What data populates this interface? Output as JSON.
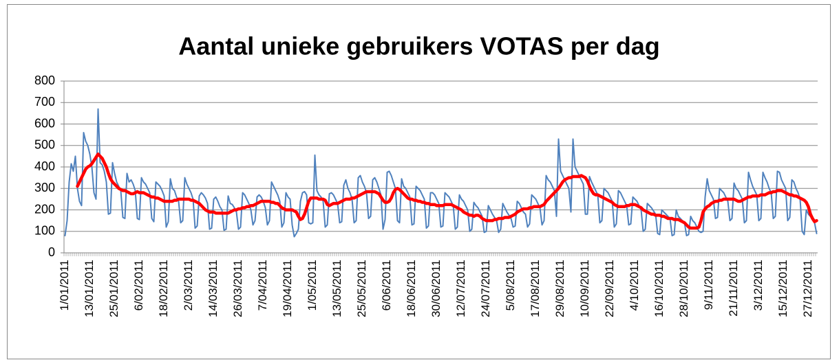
{
  "chart_data": {
    "type": "line",
    "title": "Aantal unieke gebruikers VOTAS per dag",
    "categories": [
      "1/01/2011",
      null,
      null,
      null,
      null,
      null,
      null,
      null,
      null,
      null,
      null,
      null,
      "13/01/2011",
      null,
      null,
      null,
      null,
      null,
      null,
      null,
      null,
      null,
      null,
      null,
      "25/01/2011",
      null,
      null,
      null,
      null,
      null,
      null,
      null,
      null,
      null,
      null,
      null,
      "6/02/2011",
      null,
      null,
      null,
      null,
      null,
      null,
      null,
      null,
      null,
      null,
      null,
      "18/02/2011",
      null,
      null,
      null,
      null,
      null,
      null,
      null,
      null,
      null,
      null,
      null,
      "2/03/2011",
      null,
      null,
      null,
      null,
      null,
      null,
      null,
      null,
      null,
      null,
      null,
      "14/03/2011",
      null,
      null,
      null,
      null,
      null,
      null,
      null,
      null,
      null,
      null,
      null,
      "26/03/2011",
      null,
      null,
      null,
      null,
      null,
      null,
      null,
      null,
      null,
      null,
      null,
      "7/04/2011",
      null,
      null,
      null,
      null,
      null,
      null,
      null,
      null,
      null,
      null,
      null,
      "19/04/2011",
      null,
      null,
      null,
      null,
      null,
      null,
      null,
      null,
      null,
      null,
      null,
      "1/05/2011",
      null,
      null,
      null,
      null,
      null,
      null,
      null,
      null,
      null,
      null,
      null,
      "13/05/2011",
      null,
      null,
      null,
      null,
      null,
      null,
      null,
      null,
      null,
      null,
      null,
      "25/05/2011",
      null,
      null,
      null,
      null,
      null,
      null,
      null,
      null,
      null,
      null,
      null,
      "6/06/2011",
      null,
      null,
      null,
      null,
      null,
      null,
      null,
      null,
      null,
      null,
      null,
      "18/06/2011",
      null,
      null,
      null,
      null,
      null,
      null,
      null,
      null,
      null,
      null,
      null,
      "30/06/2011",
      null,
      null,
      null,
      null,
      null,
      null,
      null,
      null,
      null,
      null,
      null,
      "12/07/2011",
      null,
      null,
      null,
      null,
      null,
      null,
      null,
      null,
      null,
      null,
      null,
      "24/07/2011",
      null,
      null,
      null,
      null,
      null,
      null,
      null,
      null,
      null,
      null,
      null,
      "5/08/2011",
      null,
      null,
      null,
      null,
      null,
      null,
      null,
      null,
      null,
      null,
      null,
      "17/08/2011",
      null,
      null,
      null,
      null,
      null,
      null,
      null,
      null,
      null,
      null,
      null,
      "29/08/2011",
      null,
      null,
      null,
      null,
      null,
      null,
      null,
      null,
      null,
      null,
      null,
      "10/09/2011",
      null,
      null,
      null,
      null,
      null,
      null,
      null,
      null,
      null,
      null,
      null,
      "22/09/2011",
      null,
      null,
      null,
      null,
      null,
      null,
      null,
      null,
      null,
      null,
      null,
      "4/10/2011",
      null,
      null,
      null,
      null,
      null,
      null,
      null,
      null,
      null,
      null,
      null,
      "16/10/2011",
      null,
      null,
      null,
      null,
      null,
      null,
      null,
      null,
      null,
      null,
      null,
      "28/10/2011",
      null,
      null,
      null,
      null,
      null,
      null,
      null,
      null,
      null,
      null,
      null,
      "9/11/2011",
      null,
      null,
      null,
      null,
      null,
      null,
      null,
      null,
      null,
      null,
      null,
      "21/11/2011",
      null,
      null,
      null,
      null,
      null,
      null,
      null,
      null,
      null,
      null,
      null,
      "3/12/2011",
      null,
      null,
      null,
      null,
      null,
      null,
      null,
      null,
      null,
      null,
      null,
      "15/12/2011",
      null,
      null,
      null,
      null,
      null,
      null,
      null,
      null,
      null,
      null,
      null,
      "27/12/2011",
      null,
      null,
      null,
      null
    ],
    "series": [
      {
        "color": "#4f81bd",
        "width": 2,
        "values": [
          80,
          150,
          330,
          415,
          380,
          450,
          300,
          240,
          220,
          560,
          520,
          500,
          460,
          400,
          280,
          250,
          670,
          420,
          410,
          380,
          330,
          180,
          185,
          420,
          370,
          330,
          310,
          290,
          165,
          160,
          370,
          330,
          340,
          320,
          290,
          160,
          155,
          350,
          330,
          320,
          300,
          280,
          160,
          145,
          330,
          320,
          310,
          290,
          265,
          120,
          145,
          345,
          300,
          290,
          260,
          240,
          140,
          150,
          350,
          320,
          300,
          280,
          250,
          115,
          125,
          265,
          280,
          270,
          255,
          230,
          110,
          115,
          250,
          260,
          240,
          215,
          200,
          105,
          110,
          265,
          230,
          225,
          210,
          190,
          110,
          120,
          280,
          270,
          250,
          230,
          200,
          130,
          150,
          260,
          270,
          260,
          240,
          210,
          130,
          150,
          330,
          310,
          290,
          270,
          240,
          120,
          140,
          280,
          260,
          250,
          130,
          75,
          90,
          110,
          240,
          280,
          285,
          270,
          140,
          135,
          140,
          455,
          290,
          270,
          260,
          240,
          120,
          130,
          275,
          280,
          270,
          250,
          230,
          140,
          145,
          315,
          340,
          300,
          280,
          250,
          140,
          150,
          350,
          360,
          330,
          310,
          280,
          160,
          170,
          340,
          350,
          330,
          300,
          270,
          110,
          155,
          375,
          380,
          360,
          330,
          300,
          150,
          140,
          345,
          310,
          300,
          280,
          260,
          130,
          135,
          310,
          300,
          290,
          270,
          250,
          115,
          125,
          280,
          280,
          270,
          250,
          230,
          120,
          125,
          280,
          270,
          260,
          240,
          220,
          110,
          120,
          270,
          250,
          240,
          220,
          200,
          100,
          110,
          235,
          220,
          210,
          190,
          170,
          95,
          100,
          220,
          200,
          180,
          165,
          150,
          95,
          110,
          230,
          210,
          190,
          175,
          160,
          120,
          125,
          240,
          230,
          210,
          190,
          180,
          120,
          135,
          270,
          260,
          250,
          230,
          210,
          130,
          150,
          360,
          340,
          330,
          310,
          290,
          170,
          530,
          380,
          360,
          340,
          320,
          300,
          190,
          530,
          400,
          380,
          360,
          340,
          320,
          180,
          180,
          355,
          330,
          310,
          290,
          270,
          140,
          150,
          300,
          290,
          280,
          260,
          240,
          120,
          135,
          290,
          280,
          260,
          240,
          220,
          130,
          135,
          260,
          250,
          240,
          220,
          200,
          100,
          110,
          230,
          220,
          210,
          195,
          180,
          90,
          85,
          200,
          190,
          180,
          170,
          160,
          80,
          85,
          200,
          170,
          160,
          150,
          140,
          80,
          85,
          170,
          150,
          140,
          120,
          100,
          95,
          100,
          260,
          345,
          290,
          270,
          250,
          160,
          165,
          300,
          290,
          280,
          260,
          240,
          150,
          160,
          325,
          300,
          290,
          270,
          250,
          140,
          150,
          375,
          340,
          310,
          290,
          270,
          150,
          160,
          375,
          350,
          330,
          300,
          280,
          160,
          170,
          380,
          375,
          340,
          320,
          300,
          150,
          165,
          340,
          330,
          300,
          280,
          250,
          100,
          85,
          200,
          180,
          170,
          160,
          140,
          90
        ]
      },
      {
        "color": "#ff0000",
        "width": 4.5,
        "values": [
          null,
          null,
          null,
          null,
          null,
          null,
          310,
          330,
          350,
          370,
          390,
          400,
          405,
          415,
          430,
          445,
          460,
          450,
          440,
          420,
          400,
          370,
          345,
          330,
          320,
          310,
          300,
          295,
          290,
          290,
          285,
          280,
          275,
          275,
          280,
          285,
          280,
          280,
          280,
          275,
          270,
          265,
          260,
          260,
          255,
          255,
          250,
          245,
          240,
          240,
          240,
          240,
          240,
          245,
          245,
          250,
          250,
          250,
          250,
          250,
          250,
          245,
          245,
          240,
          235,
          230,
          220,
          210,
          200,
          195,
          190,
          190,
          190,
          185,
          185,
          185,
          185,
          185,
          185,
          185,
          190,
          195,
          200,
          200,
          205,
          205,
          210,
          210,
          215,
          215,
          220,
          220,
          225,
          230,
          235,
          240,
          240,
          240,
          240,
          240,
          235,
          235,
          230,
          230,
          220,
          210,
          205,
          200,
          200,
          200,
          200,
          195,
          190,
          170,
          155,
          160,
          180,
          210,
          240,
          255,
          255,
          255,
          255,
          250,
          250,
          250,
          245,
          225,
          220,
          225,
          230,
          230,
          230,
          235,
          240,
          245,
          250,
          250,
          250,
          255,
          255,
          260,
          265,
          270,
          275,
          280,
          285,
          285,
          285,
          285,
          285,
          280,
          275,
          260,
          245,
          235,
          235,
          240,
          255,
          280,
          295,
          300,
          295,
          285,
          275,
          265,
          255,
          250,
          250,
          245,
          245,
          240,
          240,
          235,
          235,
          230,
          230,
          225,
          225,
          225,
          220,
          220,
          220,
          220,
          225,
          225,
          225,
          225,
          220,
          215,
          210,
          205,
          200,
          190,
          185,
          180,
          175,
          175,
          170,
          175,
          175,
          170,
          160,
          155,
          150,
          150,
          150,
          150,
          155,
          155,
          160,
          160,
          160,
          165,
          165,
          165,
          170,
          175,
          180,
          190,
          195,
          200,
          205,
          205,
          205,
          210,
          210,
          215,
          215,
          215,
          215,
          220,
          225,
          240,
          250,
          260,
          270,
          280,
          290,
          300,
          315,
          330,
          340,
          345,
          350,
          350,
          355,
          355,
          355,
          355,
          360,
          355,
          350,
          335,
          310,
          290,
          275,
          270,
          270,
          265,
          260,
          255,
          250,
          245,
          240,
          235,
          225,
          220,
          215,
          215,
          215,
          215,
          220,
          220,
          225,
          225,
          225,
          220,
          215,
          210,
          200,
          195,
          190,
          185,
          180,
          180,
          175,
          175,
          175,
          170,
          170,
          165,
          160,
          160,
          160,
          155,
          155,
          155,
          150,
          145,
          140,
          130,
          120,
          115,
          115,
          115,
          115,
          120,
          150,
          190,
          205,
          215,
          220,
          230,
          235,
          240,
          240,
          245,
          245,
          250,
          250,
          250,
          250,
          250,
          250,
          245,
          240,
          240,
          245,
          250,
          255,
          260,
          260,
          265,
          265,
          265,
          265,
          270,
          270,
          270,
          275,
          280,
          280,
          285,
          285,
          290,
          290,
          290,
          285,
          280,
          275,
          270,
          270,
          265,
          265,
          260,
          255,
          250,
          245,
          235,
          215,
          180,
          160,
          145,
          150
        ]
      }
    ],
    "ylim": [
      0,
      800
    ],
    "yticks": [
      0,
      100,
      200,
      300,
      400,
      500,
      600,
      700,
      800
    ],
    "grid": true
  }
}
